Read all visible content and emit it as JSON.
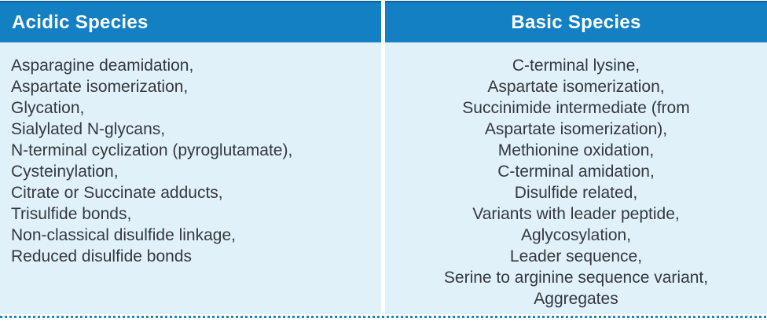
{
  "table": {
    "columns": [
      {
        "header": "Acidic Species",
        "align": "left",
        "lines": [
          "Asparagine deamidation,",
          "Aspartate isomerization,",
          "Glycation,",
          "Sialylated N-glycans,",
          "N-terminal cyclization (pyroglutamate),",
          "Cysteinylation,",
          "Citrate or Succinate adducts,",
          "Trisulfide bonds,",
          "Non-classical disulfide linkage,",
          "Reduced disulfide bonds"
        ]
      },
      {
        "header": "Basic Species",
        "align": "center",
        "lines": [
          "C-terminal lysine,",
          "Aspartate isomerization,",
          "Succinimide intermediate (from",
          "Aspartate isomerization),",
          "Methionine oxidation,",
          "C-terminal amidation,",
          "Disulfide related,",
          "Variants with leader peptide,",
          "Aglycosylation,",
          "Leader sequence,",
          "Serine to arginine sequence variant,",
          "Aggregates"
        ]
      }
    ]
  },
  "colors": {
    "header_background": "#1380C3",
    "header_top_border": "#10639A",
    "header_text": "#FFFFFF",
    "body_background": "#E0F1F9",
    "body_text": "#35383F",
    "dotted_rule": "#1A86C7",
    "gutter": "#FFFFFF"
  }
}
